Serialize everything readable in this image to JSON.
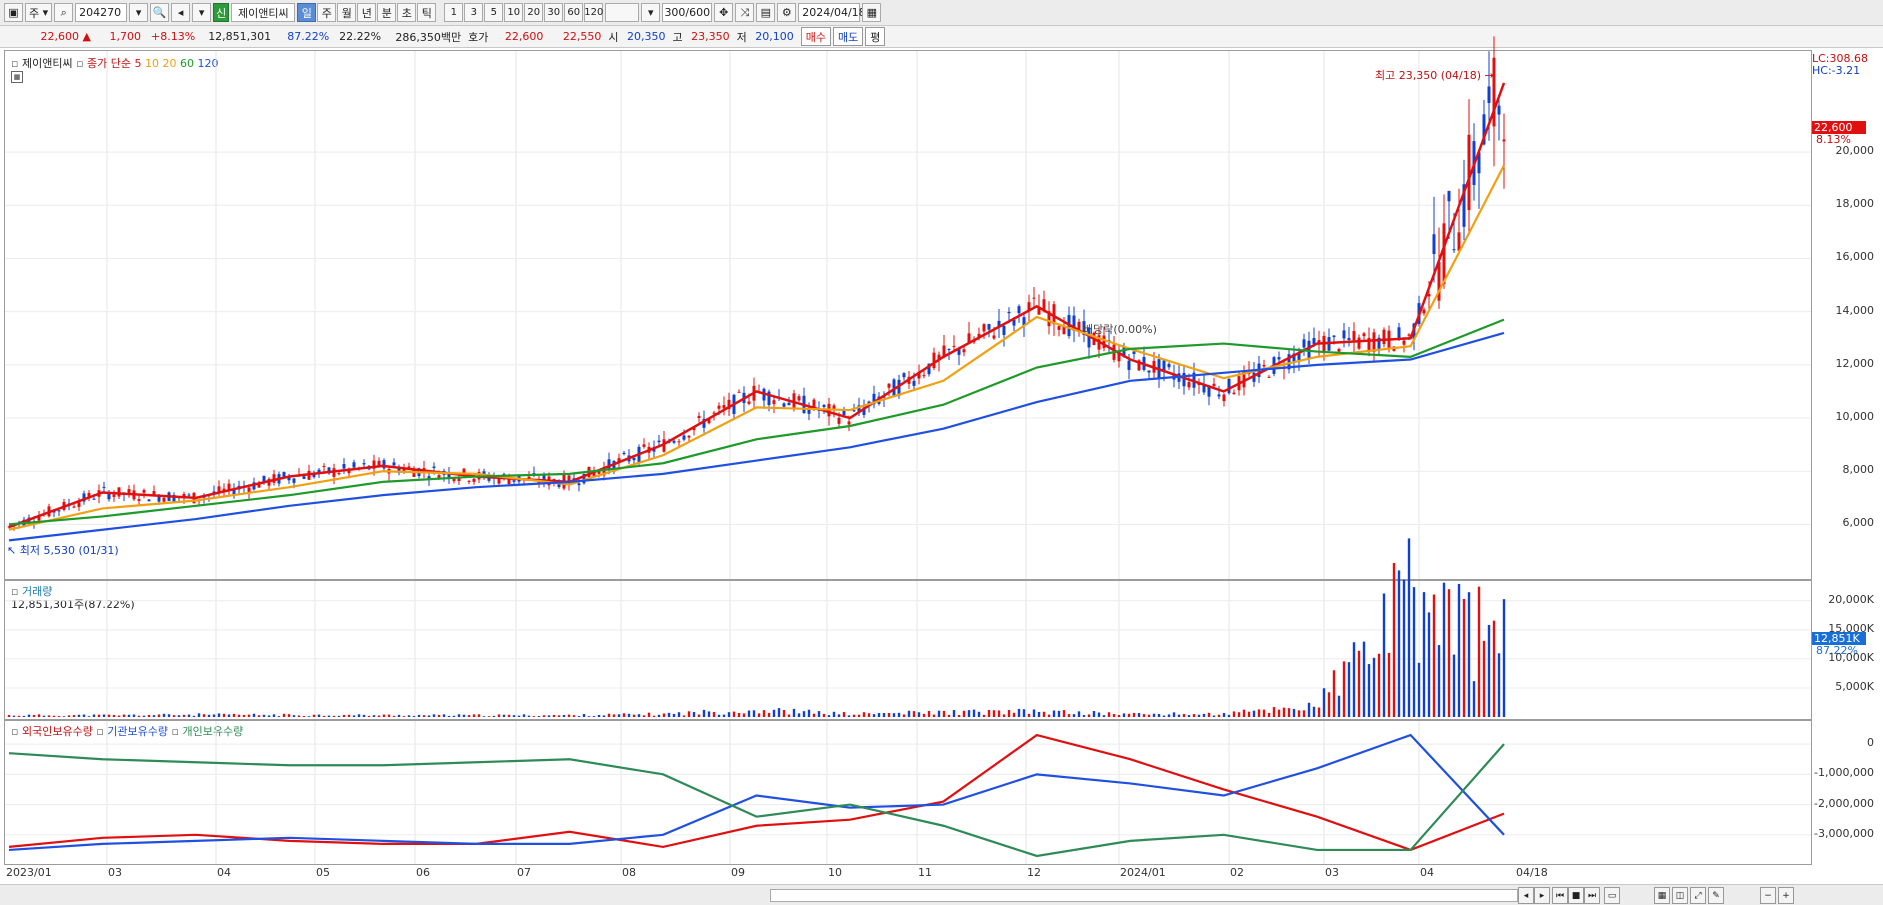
{
  "toolbar": {
    "market": "주",
    "code": "204270",
    "badge": "신",
    "name": "제이앤티씨",
    "periods": [
      "일",
      "주",
      "월",
      "년",
      "분",
      "초",
      "틱"
    ],
    "active_period": "일",
    "intervals": [
      "1",
      "3",
      "5",
      "10",
      "20",
      "30",
      "60",
      "120"
    ],
    "count": "300/600",
    "date": "2024/04/18"
  },
  "quote": {
    "price": "22,600",
    "change": "1,700",
    "change_pct": "+8.13%",
    "volume": "12,851,301",
    "vol_ratio": "87.22%",
    "turnover": "22.22%",
    "amount": "286,350백만",
    "ask_label": "호가",
    "ask": "22,600",
    "bid": "22,550",
    "open_label": "시",
    "open": "20,350",
    "high_label": "고",
    "high": "23,350",
    "low_label": "저",
    "low": "20,100",
    "buy_btn": "매수",
    "sell_btn": "매도",
    "eval_btn": "평"
  },
  "price_panel": {
    "legend_name": "제이앤티씨",
    "ma_label": "종가 단순",
    "ma_periods": [
      "5",
      "10",
      "20",
      "60",
      "120"
    ],
    "lc_label": "LC:308.68",
    "hc_label": "HC:-3.21",
    "high_note": "최고 23,350 (04/18)",
    "low_note": "최저 5,530 (01/31)",
    "dividend_note": "배당락(0.00%)",
    "last_price_tag": "22,600",
    "last_pct_tag": "8.13%",
    "y_ticks": [
      "20,000",
      "18,000",
      "16,000",
      "14,000",
      "12,000",
      "10,000",
      "8,000",
      "6,000"
    ]
  },
  "volume_panel": {
    "title": "거래량",
    "subtitle": "12,851,301주(87.22%)",
    "last_tag": "12,851K",
    "last_pct": "87.22%",
    "y_ticks": [
      "20,000K",
      "15,000K",
      "10,000K",
      "5,000K"
    ]
  },
  "holdings_panel": {
    "legend": [
      "외국인보유수량",
      "기관보유수량",
      "개인보유수량"
    ],
    "y_ticks": [
      "0",
      "-1,000,000",
      "-2,000,000",
      "-3,000,000"
    ]
  },
  "x_ticks": [
    "2023/01",
    "03",
    "04",
    "05",
    "06",
    "07",
    "08",
    "09",
    "10",
    "11",
    "12",
    "2024/01",
    "02",
    "03",
    "04",
    "04/18"
  ],
  "colors": {
    "ma5": "#e01010",
    "ma10": "#f0a010",
    "ma20": "#f0a010",
    "ma60": "#1e9a2a",
    "ma120": "#2050e0",
    "up": "#e01010",
    "down": "#1040d0",
    "foreign": "#e01010",
    "institution": "#2050e0",
    "individual": "#2e8b57"
  },
  "chart_data": [
    {
      "type": "line",
      "title": "",
      "x": [
        "2023/01",
        "2023/02",
        "2023/03",
        "2023/04",
        "2023/05",
        "2023/06",
        "2023/07",
        "2023/08",
        "2023/09",
        "2023/10",
        "2023/11",
        "2023/12",
        "2024/01",
        "2024/02",
        "2024/03",
        "2024/04",
        "2024/04/18"
      ],
      "series": [
        {
          "name": "5",
          "values": [
            5900,
            7200,
            7000,
            7800,
            8200,
            7800,
            7600,
            9000,
            11000,
            10000,
            12300,
            14200,
            12200,
            11000,
            12800,
            13000,
            22600
          ]
        },
        {
          "name": "20",
          "values": [
            5800,
            6600,
            6900,
            7400,
            8000,
            7900,
            7500,
            8600,
            10400,
            10300,
            11400,
            13800,
            12600,
            11500,
            12300,
            12700,
            19500
          ]
        },
        {
          "name": "60",
          "values": [
            6000,
            6300,
            6700,
            7100,
            7600,
            7800,
            7900,
            8300,
            9200,
            9700,
            10500,
            11900,
            12600,
            12800,
            12500,
            12300,
            13700
          ]
        },
        {
          "name": "120",
          "values": [
            5400,
            5800,
            6200,
            6700,
            7100,
            7400,
            7600,
            7900,
            8400,
            8900,
            9600,
            10600,
            11400,
            11700,
            12000,
            12200,
            13200
          ]
        }
      ],
      "ylim": [
        5000,
        23350
      ],
      "annotations": [
        "최고 23,350 (04/18)",
        "최저 5,530 (01/31)"
      ]
    },
    {
      "type": "bar",
      "title": "거래량",
      "x": [
        "2023/01",
        "2023/02",
        "2023/03",
        "2023/04",
        "2023/05",
        "2023/06",
        "2023/07",
        "2023/08",
        "2023/09",
        "2023/10",
        "2023/11",
        "2023/12",
        "2024/01",
        "2024/02",
        "2024/03",
        "2024/04",
        "2024/04/18"
      ],
      "values": [
        300,
        300,
        400,
        350,
        300,
        300,
        300,
        500,
        1200,
        500,
        800,
        900,
        500,
        500,
        2000,
        20000,
        12851
      ],
      "ylim": [
        0,
        21000
      ]
    },
    {
      "type": "line",
      "title": "",
      "x": [
        "2023/01",
        "2023/02",
        "2023/03",
        "2023/04",
        "2023/05",
        "2023/06",
        "2023/07",
        "2023/08",
        "2023/09",
        "2023/10",
        "2023/11",
        "2023/12",
        "2024/01",
        "2024/02",
        "2024/03",
        "2024/04",
        "2024/04/18"
      ],
      "series": [
        {
          "name": "외국인보유수량",
          "values": [
            -3400000,
            -3100000,
            -3000000,
            -3200000,
            -3300000,
            -3300000,
            -2900000,
            -3400000,
            -2700000,
            -2500000,
            -1900000,
            300000,
            -500000,
            -1500000,
            -2400000,
            -3500000,
            -2300000
          ]
        },
        {
          "name": "기관보유수량",
          "values": [
            -3500000,
            -3300000,
            -3200000,
            -3100000,
            -3200000,
            -3300000,
            -3300000,
            -3000000,
            -1700000,
            -2100000,
            -2000000,
            -1000000,
            -1300000,
            -1700000,
            -800000,
            300000,
            -3000000
          ]
        },
        {
          "name": "개인보유수량",
          "values": [
            -300000,
            -500000,
            -600000,
            -700000,
            -700000,
            -600000,
            -500000,
            -1000000,
            -2400000,
            -2000000,
            -2700000,
            -3700000,
            -3200000,
            -3000000,
            -3500000,
            -3500000,
            0
          ]
        }
      ],
      "ylim": [
        -3800000,
        500000
      ]
    }
  ]
}
